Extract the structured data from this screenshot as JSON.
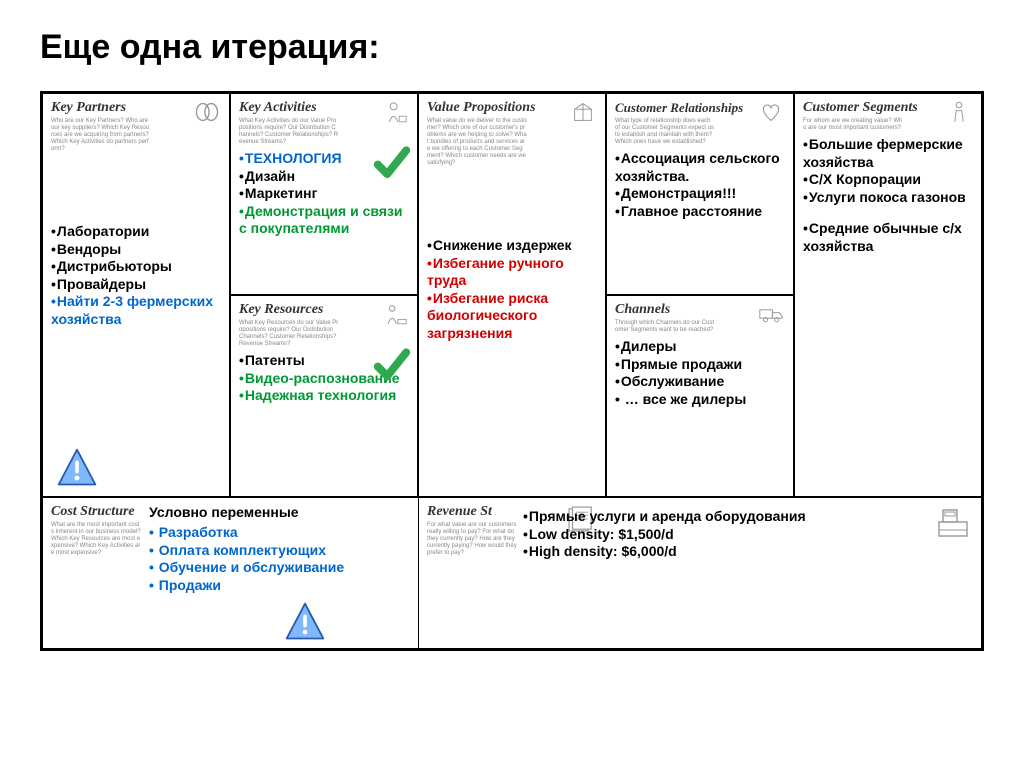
{
  "title": "Еще одна итерация:",
  "colors": {
    "blue": "#0066cc",
    "green": "#009933",
    "red": "#d00000",
    "black": "#000000",
    "border": "#000000",
    "subtitle": "#888888",
    "check": "#2fa84f",
    "alertFill": "#7fb8ff",
    "alertStroke": "#2a5aa8"
  },
  "kp": {
    "title": "Key Partners",
    "sub": "Who are our Key Partners? Who are our key suppliers? Which Key Resources are we acquiring from partners? Which Key Activities do partners perform?",
    "items": [
      {
        "t": "Лаборатории",
        "c": "c-black"
      },
      {
        "t": "Вендоры",
        "c": "c-black"
      },
      {
        "t": "Дистрибьюторы",
        "c": "c-black"
      },
      {
        "t": "Провайдеры",
        "c": "c-black"
      },
      {
        "t": "Найти 2-3 фермерских хозяйства",
        "c": "c-blue"
      }
    ]
  },
  "ka": {
    "title": "Key Activities",
    "sub": "What Key Activities do our Value Propositions require? Our Distribution Channels? Customer Relationships? Revenue Streams?",
    "items": [
      {
        "t": "ТЕХНОЛОГИЯ",
        "c": "c-blue"
      },
      {
        "t": "Дизайн",
        "c": "c-black"
      },
      {
        "t": "Маркетинг",
        "c": "c-black"
      },
      {
        "t": "Демонстрация и связи с покупателями",
        "c": "c-green"
      }
    ]
  },
  "kr": {
    "title": "Key Resources",
    "sub": "What Key Resources do our Value Propositions require? Our Distribution Channels? Customer Relationships? Revenue Streams?",
    "items": [
      {
        "t": "Патенты",
        "c": "c-black"
      },
      {
        "t": "Видео-распознование",
        "c": "c-green"
      },
      {
        "t": "Надежная технология",
        "c": "c-green"
      }
    ]
  },
  "vp": {
    "title": "Value Propositions",
    "sub": "What value do we deliver to the customer? Which one of our customer's problems are we helping to solve? What bundles of products and services are we offering to each Customer Segment? Which customer needs are we satisfying?",
    "items": [
      {
        "t": "Снижение издержек",
        "c": "c-black"
      },
      {
        "t": "Избегание ручного труда",
        "c": "c-red"
      },
      {
        "t": "Избегание риска биологического загрязнения",
        "c": "c-red"
      }
    ]
  },
  "cr": {
    "title": "Customer Relationships",
    "sub": "What type of relationship does each of our Customer Segments expect us to establish and maintain with them? Which ones have we established?",
    "items": [
      {
        "t": "Ассоциация сельского хозяйства.",
        "c": "c-black"
      },
      {
        "t": "Демонстрация!!!",
        "c": "c-black"
      },
      {
        "t": "Главное расстояние",
        "c": "c-black"
      }
    ]
  },
  "ch": {
    "title": "Channels",
    "sub": "Through which Channels do our Customer Segments want to be reached?",
    "items": [
      {
        "t": "Дилеры",
        "c": "c-black"
      },
      {
        "t": "Прямые продажи",
        "c": "c-black"
      },
      {
        "t": "Обслуживание",
        "c": "c-black"
      },
      {
        "t": " … все же дилеры",
        "c": "c-black"
      }
    ]
  },
  "cs": {
    "title": "Customer Segments",
    "sub": "For whom are we creating value? Who are our most important customers?",
    "items": [
      {
        "t": "Большие фермерские хозяйства",
        "c": "c-black"
      },
      {
        "t": "С/Х Корпорации",
        "c": "c-black"
      },
      {
        "t": "Услуги покоса газонов",
        "c": "c-black"
      }
    ],
    "items2": [
      {
        "t": "Средние обычные с/x хозяйства",
        "c": "c-black"
      }
    ]
  },
  "cost": {
    "title": "Cost Structure",
    "sub": "What are the most important costs inherent in our business model? Which Key Resources are most expensive? Which Key Activities are most expensive?",
    "subhead": "Условно переменные",
    "items": [
      {
        "t": " Разработка",
        "c": "c-blue"
      },
      {
        "t": " Оплата комплектующих",
        "c": "c-blue"
      },
      {
        "t": " Обучение и обслуживание",
        "c": "c-blue"
      },
      {
        "t": " Продажи",
        "c": "c-blue"
      }
    ]
  },
  "rev": {
    "title": "Revenue Streams",
    "titleShort": "Revenue St",
    "sub": "For what value are our customers really willing to pay? For what do they currently pay? How are they currently paying? How would they prefer to pay?",
    "items": [
      {
        "t": "Прямые услуги и аренда оборудования",
        "c": "c-black"
      },
      {
        "t": "Low density: $1,500/d",
        "c": "c-black"
      },
      {
        "t": "High density: $6,000/d",
        "c": "c-black"
      }
    ]
  }
}
